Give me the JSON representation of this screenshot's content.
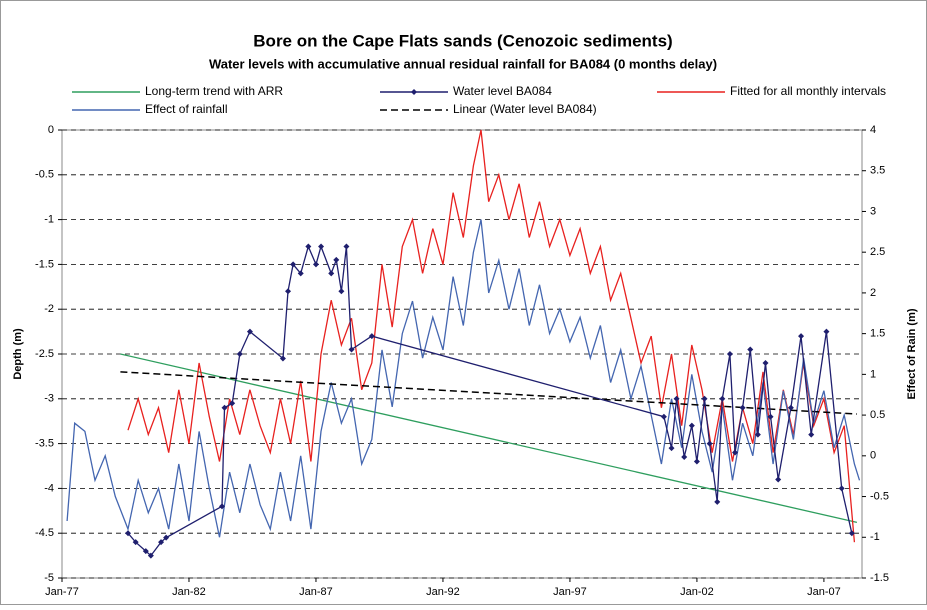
{
  "chart_data": {
    "type": "line",
    "title": "Bore on the Cape Flats sands (Cenozoic sediments)",
    "subtitle": "Water levels with accumulative annual residual rainfall for BA084 (0 months delay)",
    "ylabel": "Depth (m)",
    "y2label": "Effect of Rain (m)",
    "xlim": [
      1977,
      2008.5
    ],
    "xticks": [
      {
        "value": 1977,
        "label": "Jan-77"
      },
      {
        "value": 1982,
        "label": "Jan-82"
      },
      {
        "value": 1987,
        "label": "Jan-87"
      },
      {
        "value": 1992,
        "label": "Jan-92"
      },
      {
        "value": 1997,
        "label": "Jan-97"
      },
      {
        "value": 2002,
        "label": "Jan-02"
      },
      {
        "value": 2007,
        "label": "Jan-07"
      }
    ],
    "ylim": [
      -5,
      0
    ],
    "yticks": [
      0,
      -0.5,
      -1,
      -1.5,
      -2,
      -2.5,
      -3,
      -3.5,
      -4,
      -4.5,
      -5
    ],
    "y2lim": [
      -1.5,
      4
    ],
    "y2ticks": [
      4,
      3.5,
      3,
      2.5,
      2,
      1.5,
      1,
      0.5,
      0,
      -0.5,
      -1,
      -1.5
    ],
    "grid": true,
    "series": [
      {
        "name": "Long-term trend with ARR",
        "color": "#2e9e5e",
        "x": [
          1979.3,
          2008.3
        ],
        "values": [
          -2.5,
          -4.38
        ]
      },
      {
        "name": "Water level BA084",
        "color": "#1f1f6e",
        "marker": "diamond",
        "x": [
          1979.6,
          1979.9,
          1980.3,
          1980.5,
          1980.9,
          1981.1,
          1983.3,
          1983.4,
          1983.7,
          1984.0,
          1984.4,
          1985.7,
          1985.9,
          1986.1,
          1986.4,
          1986.7,
          1987.0,
          1987.2,
          1987.6,
          1987.8,
          1988.0,
          1988.2,
          1988.4,
          1989.2,
          2000.7,
          2001.0,
          2001.2,
          2001.5,
          2001.8,
          2002.0,
          2002.3,
          2002.5,
          2002.8,
          2003.0,
          2003.3,
          2003.5,
          2003.8,
          2004.1,
          2004.4,
          2004.7,
          2004.9,
          2005.2,
          2005.7,
          2006.1,
          2006.5,
          2007.1,
          2007.7,
          2008.1
        ],
        "values": [
          -4.5,
          -4.6,
          -4.7,
          -4.75,
          -4.6,
          -4.55,
          -4.2,
          -3.1,
          -3.05,
          -2.5,
          -2.25,
          -2.55,
          -1.8,
          -1.5,
          -1.6,
          -1.3,
          -1.5,
          -1.3,
          -1.6,
          -1.45,
          -1.8,
          -1.3,
          -2.45,
          -2.3,
          -3.2,
          -3.55,
          -3.0,
          -3.65,
          -3.3,
          -3.7,
          -3.0,
          -3.5,
          -4.15,
          -3.0,
          -2.5,
          -3.6,
          -3.1,
          -2.45,
          -3.4,
          -2.6,
          -3.2,
          -3.9,
          -3.1,
          -2.3,
          -3.4,
          -2.25,
          -4.0,
          -4.5
        ]
      },
      {
        "name": "Fitted for all monthly intervals",
        "color": "#e8211f",
        "x": [
          1979.6,
          1980.0,
          1980.4,
          1980.8,
          1981.2,
          1981.6,
          1982.0,
          1982.4,
          1982.8,
          1983.2,
          1983.6,
          1984.0,
          1984.4,
          1984.8,
          1985.2,
          1985.6,
          1986.0,
          1986.4,
          1986.8,
          1987.2,
          1987.6,
          1988.0,
          1988.4,
          1988.8,
          1989.2,
          1989.6,
          1990.0,
          1990.4,
          1990.8,
          1991.2,
          1991.6,
          1992.0,
          1992.4,
          1992.8,
          1993.2,
          1993.5,
          1993.8,
          1994.2,
          1994.6,
          1995.0,
          1995.4,
          1995.8,
          1996.2,
          1996.6,
          1997.0,
          1997.4,
          1997.8,
          1998.2,
          1998.6,
          1999.0,
          1999.4,
          1999.8,
          2000.2,
          2000.6,
          2001.0,
          2001.4,
          2001.8,
          2002.2,
          2002.6,
          2003.0,
          2003.4,
          2003.8,
          2004.2,
          2004.6,
          2005.0,
          2005.4,
          2005.8,
          2006.2,
          2006.6,
          2007.0,
          2007.4,
          2007.8,
          2008.2
        ],
        "values": [
          -3.35,
          -3.0,
          -3.4,
          -3.1,
          -3.6,
          -2.9,
          -3.5,
          -2.6,
          -3.2,
          -3.7,
          -3.0,
          -3.4,
          -2.9,
          -3.3,
          -3.6,
          -3.0,
          -3.5,
          -2.8,
          -3.7,
          -2.5,
          -1.9,
          -2.4,
          -2.1,
          -2.9,
          -2.6,
          -1.5,
          -2.2,
          -1.3,
          -1.0,
          -1.6,
          -1.1,
          -1.5,
          -0.7,
          -1.2,
          -0.4,
          0.0,
          -0.8,
          -0.5,
          -1.0,
          -0.6,
          -1.2,
          -0.8,
          -1.3,
          -1.0,
          -1.4,
          -1.1,
          -1.6,
          -1.3,
          -1.9,
          -1.6,
          -2.1,
          -2.6,
          -2.3,
          -3.1,
          -2.5,
          -3.3,
          -2.4,
          -2.9,
          -3.6,
          -3.0,
          -3.7,
          -3.1,
          -3.5,
          -2.7,
          -3.6,
          -2.9,
          -3.4,
          -2.6,
          -3.3,
          -3.0,
          -3.6,
          -3.3,
          -4.6
        ]
      },
      {
        "name": "Effect of rainfall",
        "color": "#4466b0",
        "axis": "y2",
        "x": [
          1977.2,
          1977.5,
          1977.9,
          1978.3,
          1978.7,
          1979.1,
          1979.6,
          1980.0,
          1980.4,
          1980.8,
          1981.2,
          1981.6,
          1982.0,
          1982.4,
          1982.8,
          1983.2,
          1983.6,
          1984.0,
          1984.4,
          1984.8,
          1985.2,
          1985.6,
          1986.0,
          1986.4,
          1986.8,
          1987.2,
          1987.6,
          1988.0,
          1988.4,
          1988.8,
          1989.2,
          1989.6,
          1990.0,
          1990.4,
          1990.8,
          1991.2,
          1991.6,
          1992.0,
          1992.4,
          1992.8,
          1993.2,
          1993.5,
          1993.8,
          1994.2,
          1994.6,
          1995.0,
          1995.4,
          1995.8,
          1996.2,
          1996.6,
          1997.0,
          1997.4,
          1997.8,
          1998.2,
          1998.6,
          1999.0,
          1999.4,
          1999.8,
          2000.2,
          2000.6,
          2001.0,
          2001.4,
          2001.8,
          2002.2,
          2002.6,
          2003.0,
          2003.4,
          2003.8,
          2004.2,
          2004.6,
          2005.0,
          2005.4,
          2005.8,
          2006.2,
          2006.6,
          2007.0,
          2007.4,
          2007.8,
          2008.2,
          2008.4
        ],
        "values": [
          -0.8,
          0.4,
          0.3,
          -0.3,
          0.0,
          -0.5,
          -0.9,
          -0.3,
          -0.7,
          -0.4,
          -0.9,
          -0.1,
          -0.8,
          0.3,
          -0.4,
          -1.0,
          -0.2,
          -0.7,
          -0.1,
          -0.6,
          -0.9,
          -0.2,
          -0.8,
          0.0,
          -0.9,
          0.3,
          0.9,
          0.4,
          0.7,
          -0.1,
          0.2,
          1.3,
          0.6,
          1.5,
          1.9,
          1.2,
          1.7,
          1.3,
          2.2,
          1.6,
          2.5,
          2.9,
          2.0,
          2.4,
          1.8,
          2.3,
          1.6,
          2.1,
          1.5,
          1.8,
          1.4,
          1.7,
          1.2,
          1.6,
          0.9,
          1.3,
          0.7,
          1.1,
          0.5,
          -0.1,
          0.7,
          0.1,
          1.0,
          0.3,
          -0.2,
          0.6,
          -0.3,
          0.4,
          0.0,
          0.9,
          -0.1,
          0.8,
          0.2,
          1.2,
          0.4,
          0.8,
          0.1,
          0.5,
          -0.1,
          -0.3
        ]
      },
      {
        "name": "Linear (Water level BA084)",
        "color": "#000000",
        "style": "dashed",
        "x": [
          1979.3,
          2008.3
        ],
        "values": [
          -2.7,
          -3.17
        ]
      }
    ]
  }
}
